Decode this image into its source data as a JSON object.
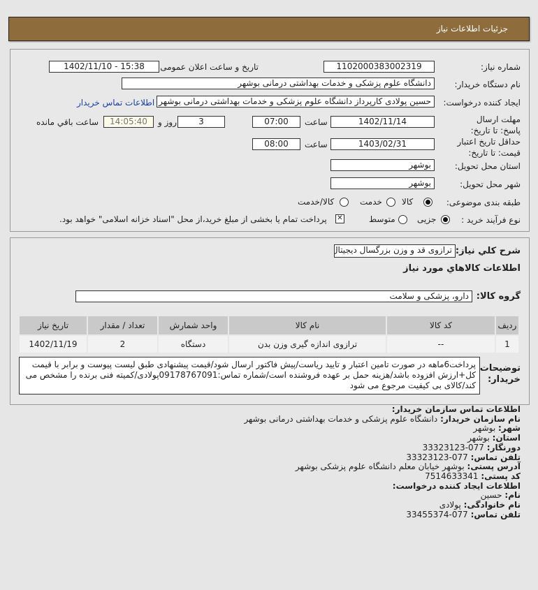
{
  "header": {
    "title": "جزئیات اطلاعات نیاز"
  },
  "form": {
    "need_number_label": "شماره نیاز:",
    "need_number": "1102000383002319",
    "announce_label": "تاریخ و ساعت اعلان عمومی:",
    "announce_value": "1402/11/10 - 15:38",
    "buyer_label": "نام دستگاه خریدار:",
    "buyer_value": "دانشگاه علوم پزشکی و خدمات بهداشتی درمانی بوشهر",
    "creator_label": "ایجاد کننده درخواست:",
    "creator_value": "حسین پولادی کارپرداز دانشگاه علوم پزشکی و خدمات بهداشتی درمانی بوشهر",
    "contact_link": "اطلاعات تماس خریدار",
    "deadline_label": "مهلت ارسال پاسخ: تا تاریخ:",
    "deadline_date": "1402/11/14",
    "time_label": "ساعت",
    "deadline_time": "07:00",
    "days": "3",
    "days_label": "روز و",
    "remaining": "14:05:40",
    "remaining_label": "ساعت باقي مانده",
    "validity_label": "حداقل تاریخ اعتبار قیمت: تا تاریخ:",
    "validity_date": "1403/02/31",
    "validity_time": "08:00",
    "province_label": "استان محل تحویل:",
    "province": "بوشهر",
    "city_label": "شهر محل تحویل:",
    "city": "بوشهر",
    "category_label": "طبقه بندی موضوعی:",
    "category_options": [
      "کالا",
      "خدمت",
      "کالا/خدمت"
    ],
    "category_selected": "کالا",
    "process_label": "نوع فرآیند خرید :",
    "process_options": [
      "جزیی",
      "متوسط"
    ],
    "process_selected": "جزیی",
    "payment_note": "پرداخت تمام یا بخشی از مبلغ خرید،از محل \"اسناد خزانه اسلامی\" خواهد بود."
  },
  "details": {
    "summary_label": "شرح کلي نیاز:",
    "summary": "ترازوی قد و وزن بزرگسال دیجیتال",
    "goods_heading": "اطلاعات کالاهاي مورد نیاز",
    "group_label": "گروه کالا:",
    "group": "دارو، پزشکی و سلامت",
    "table": {
      "headers": [
        "ردیف",
        "کد کالا",
        "نام کالا",
        "واحد شمارش",
        "تعداد / مقدار",
        "تاریخ نیاز"
      ],
      "rows": [
        [
          "1",
          "--",
          "ترازوی اندازه گیری وزن بدن",
          "دستگاه",
          "2",
          "1402/11/19"
        ]
      ]
    },
    "notes_label": "توضیحات خریدار:",
    "notes": "پرداخت6ماهه در صورت تامین اعتبار و تایید ریاست/پیش فاکتور ارسال شود/قیمت پیشنهادی طبق لیست پیوست و برابر با قیمت کل+ارزش افزوده باشد/هزینه حمل بر عهده فروشنده است/شماره تماس:09178767091پولادی/کمیته فنی برنده را مشخص می کند/کالای بی کیفیت مرجوع می شود"
  },
  "contact": {
    "heading": "اطلاعات تماس سازمان خریدار:",
    "org_label": "نام سازمان خریدار:",
    "org": "دانشگاه علوم پزشکی و خدمات بهداشتی درمانی بوشهر",
    "city_label": "شهر:",
    "city": "بوشهر",
    "province_label": "استان:",
    "province": "بوشهر",
    "fax_label": "دورنگار:",
    "fax": "077-33323123",
    "phone_label": "تلفن تماس:",
    "phone": "077-33323123",
    "address_label": "آدرس پستی:",
    "address": "بوشهر خیابان معلم دانشگاه علوم پزشکی بوشهر",
    "postal_label": "کد پستی:",
    "postal": "7514633341",
    "creator_heading": "اطلاعات ایجاد کننده درخواست:",
    "name_label": "نام:",
    "name": "حسین",
    "family_label": "نام خانوادگی:",
    "family": "پولادی",
    "creator_phone_label": "تلفن تماس:",
    "creator_phone": "077-33455374"
  }
}
